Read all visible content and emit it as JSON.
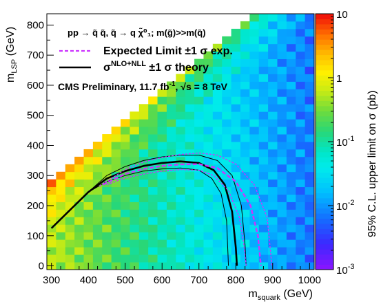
{
  "chart_data": {
    "type": "heatmap",
    "xlabel_main": "m",
    "xlabel_sub": "squark",
    "xlabel_unit": " (GeV)",
    "ylabel_main": "m",
    "ylabel_sub": "LSP",
    "ylabel_unit": " (GeV)",
    "zlabel": "95% C.L. upper limit on σ (pb)",
    "xlim": [
      287.5,
      1012.5
    ],
    "ylim": [
      -12.5,
      837.5
    ],
    "zlim": [
      0.001,
      10
    ],
    "z_scale": "log",
    "x_ticks": [
      "300",
      "400",
      "500",
      "600",
      "700",
      "800",
      "900",
      "1000"
    ],
    "y_ticks": [
      "0",
      "100",
      "200",
      "300",
      "400",
      "500",
      "600",
      "700",
      "800"
    ],
    "z_ticks": [
      {
        "base": "10",
        "exp": ""
      },
      {
        "base": "1",
        "exp": ""
      },
      {
        "base": "10",
        "exp": "-1"
      },
      {
        "base": "10",
        "exp": "-2"
      },
      {
        "base": "10",
        "exp": "-3"
      }
    ],
    "bin_width": 25,
    "grid_note": "cells filled for m_LSP <= m_squark - 25 GeV; cell value is the log10 of the upper limit in pb",
    "annotations": {
      "process": "pp → q̃ q̃, q̃ → q χ̃⁰₁; m(g̃)>>m(q̃)",
      "expected_label": "Expected Limit ±1 σ exp.",
      "theory_main": "σ",
      "theory_sup": "NLO+NLL",
      "theory_rest": " ±1 σ theory",
      "prelim": "CMS Preliminary, 11.7 fb",
      "prelim_sup": "-1",
      "prelim_rest": ", √s = 8 TeV"
    },
    "legend_position": "top-left",
    "series": [
      {
        "style": "thick solid black",
        "x": [
          300,
          350,
          400,
          450,
          500,
          550,
          600,
          650,
          700,
          740,
          770,
          790,
          800,
          803
        ],
        "y": [
          125,
          185,
          245,
          290,
          315,
          332,
          342,
          347,
          342,
          318,
          270,
          180,
          60,
          0
        ]
      },
      {
        "style": "thin solid black",
        "x": [
          300,
          350,
          400,
          450,
          500,
          550,
          600,
          650,
          700,
          750,
          790,
          815,
          825,
          828
        ],
        "y": [
          125,
          185,
          245,
          300,
          330,
          350,
          362,
          368,
          368,
          350,
          300,
          200,
          70,
          0
        ]
      },
      {
        "style": "thin solid black",
        "x": [
          300,
          350,
          400,
          450,
          500,
          550,
          600,
          650,
          700,
          735,
          760,
          775,
          780
        ],
        "y": [
          125,
          185,
          245,
          280,
          300,
          315,
          322,
          325,
          318,
          290,
          240,
          150,
          0
        ]
      },
      {
        "style": "thick dashed magenta",
        "x": [
          440,
          500,
          550,
          600,
          650,
          700,
          750,
          800,
          840,
          860,
          868
        ],
        "y": [
          270,
          305,
          322,
          332,
          337,
          338,
          325,
          280,
          200,
          100,
          0
        ]
      },
      {
        "style": "thin dashed magenta",
        "x": [
          430,
          500,
          550,
          600,
          650,
          700,
          750,
          800,
          850,
          885,
          898
        ],
        "y": [
          265,
          320,
          345,
          360,
          370,
          375,
          368,
          338,
          270,
          160,
          0
        ]
      },
      {
        "style": "thin dashed magenta",
        "x": [
          450,
          500,
          550,
          600,
          650,
          700,
          740,
          780,
          810,
          822,
          828
        ],
        "y": [
          270,
          292,
          305,
          315,
          320,
          318,
          300,
          250,
          160,
          70,
          0
        ]
      }
    ]
  }
}
